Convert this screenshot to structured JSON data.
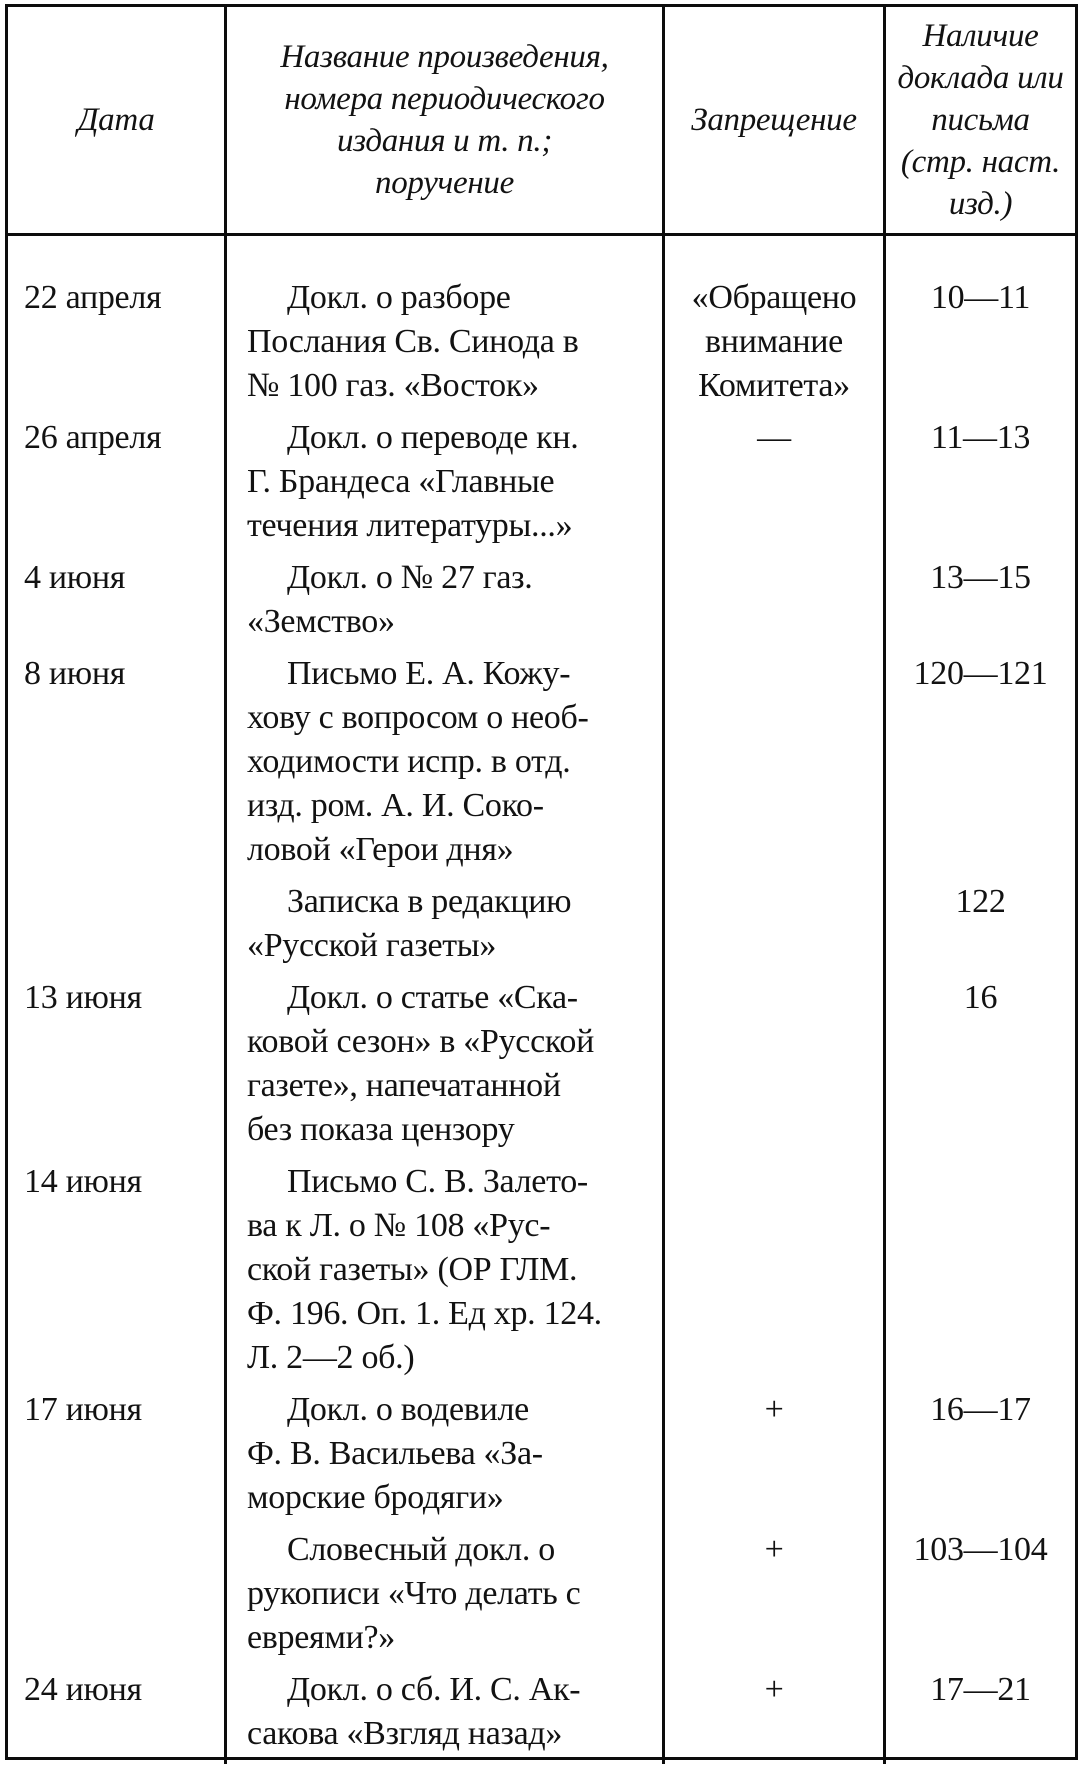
{
  "colors": {
    "ink": "#0c0c0c",
    "paper": "#ffffff"
  },
  "table": {
    "header": {
      "date_lines": [
        "Дата"
      ],
      "title_lines": [
        "Название произведения,",
        "номера периодического",
        "издания и т. п.;",
        "поручение"
      ],
      "prohibition_lines": [
        "Запрещение"
      ],
      "pages_lines": [
        "Наличие",
        "доклада или",
        "письма",
        "(стр. наст.",
        "изд.)"
      ]
    },
    "rows": [
      {
        "date": "22 апреля",
        "title_lines": [
          "Докл. о разборе",
          "Послания Св. Синода в",
          "№ 100 газ. «Восток»"
        ],
        "prohibition_lines": [
          "«Обращено",
          "внимание",
          "Комитета»"
        ],
        "pages": "10—11"
      },
      {
        "date": "26 апреля",
        "title_lines": [
          "Докл. о переводе кн.",
          "Г. Брандеса «Главные",
          "течения литературы...»"
        ],
        "prohibition_lines": [
          "—"
        ],
        "pages": "11—13"
      },
      {
        "date": "4 июня",
        "title_lines": [
          "Докл. о № 27 газ.",
          "«Земство»"
        ],
        "prohibition_lines": [],
        "pages": "13—15"
      },
      {
        "date": "8 июня",
        "title_lines": [
          "Письмо Е. А. Кожу-",
          "хову с вопросом о необ-",
          "ходимости испр. в отд.",
          "изд. ром. А. И. Соко-",
          "ловой «Герои дня»"
        ],
        "prohibition_lines": [],
        "pages": "120—121"
      },
      {
        "date": "",
        "title_lines": [
          "Записка в редакцию",
          "«Русской газеты»"
        ],
        "prohibition_lines": [],
        "pages": "122"
      },
      {
        "date": "13 июня",
        "title_lines": [
          "Докл. о статье «Ска-",
          "ковой сезон» в «Русской",
          "газете», напечатанной",
          "без показа цензору"
        ],
        "prohibition_lines": [],
        "pages": "16"
      },
      {
        "date": "14 июня",
        "title_lines": [
          "Письмо С. В. Залето-",
          "ва к Л. о № 108 «Рус-",
          "ской газеты» (ОР ГЛМ.",
          "Ф. 196. Оп. 1. Ед хр. 124.",
          "Л. 2—2 об.)"
        ],
        "prohibition_lines": [],
        "pages": ""
      },
      {
        "date": "17 июня",
        "title_lines": [
          "Докл. о водевиле",
          "Ф. В. Васильева «За-",
          "морские бродяги»"
        ],
        "prohibition_lines": [
          "+"
        ],
        "pages": "16—17"
      },
      {
        "date": "",
        "title_lines": [
          "Словесный докл. о",
          "рукописи «Что делать с",
          "евреями?»"
        ],
        "prohibition_lines": [
          "+"
        ],
        "pages": "103—104"
      },
      {
        "date": "24 июня",
        "title_lines": [
          "Докл. о сб. И. С. Ак-",
          "сакова «Взгляд назад»"
        ],
        "prohibition_lines": [
          "+"
        ],
        "pages": "17—21"
      }
    ]
  }
}
